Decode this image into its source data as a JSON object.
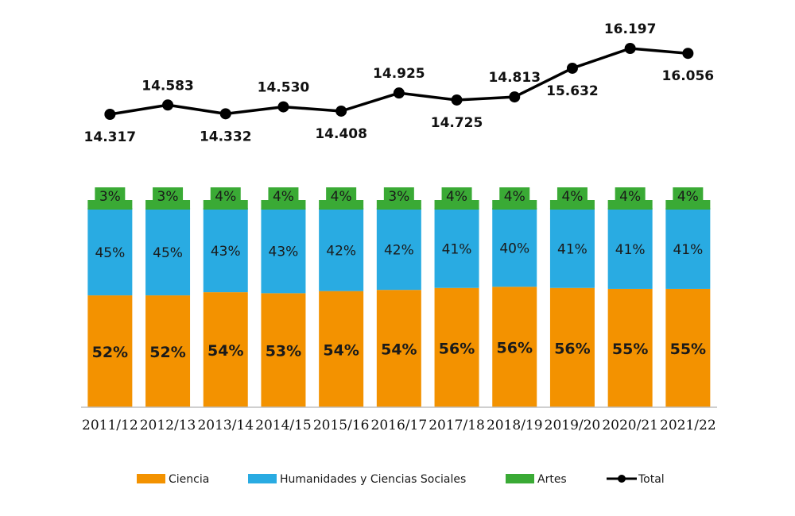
{
  "chart_data": {
    "type": "bar",
    "stacked": true,
    "categories": [
      "2011/12",
      "2012/13",
      "2013/14",
      "2014/15",
      "2015/16",
      "2016/17",
      "2017/18",
      "2018/19",
      "2019/20",
      "2020/21",
      "2021/22"
    ],
    "series": [
      {
        "name": "Ciencia",
        "color": "#F39200",
        "values": [
          52,
          52,
          54,
          53,
          54,
          54,
          56,
          56,
          56,
          55,
          55
        ],
        "labels": [
          "52%",
          "52%",
          "54%",
          "53%",
          "54%",
          "54%",
          "56%",
          "56%",
          "56%",
          "55%",
          "55%"
        ]
      },
      {
        "name": "Humanidades y Ciencias Sociales",
        "color": "#29ABE2",
        "values": [
          45,
          45,
          43,
          43,
          42,
          42,
          41,
          40,
          41,
          41,
          41
        ],
        "labels": [
          "45%",
          "45%",
          "43%",
          "43%",
          "42%",
          "42%",
          "41%",
          "40%",
          "41%",
          "41%",
          "41%"
        ]
      },
      {
        "name": "Artes",
        "color": "#3AAA35",
        "values": [
          3,
          3,
          4,
          4,
          4,
          3,
          4,
          4,
          4,
          4,
          4
        ],
        "labels": [
          "3%",
          "3%",
          "4%",
          "4%",
          "4%",
          "3%",
          "4%",
          "4%",
          "4%",
          "4%",
          "4%"
        ]
      }
    ],
    "line": {
      "name": "Total",
      "color": "#000000",
      "values": [
        14317,
        14583,
        14332,
        14530,
        14408,
        14925,
        14725,
        14813,
        15632,
        16197,
        16056
      ],
      "labels": [
        "14.317",
        "14.583",
        "14.332",
        "14.530",
        "14.408",
        "14.925",
        "14.725",
        "14.813",
        "15.632",
        "16.197",
        "16.056"
      ]
    },
    "legend_position": "bottom",
    "grid": false,
    "title": "",
    "xlabel": "",
    "ylabel": ""
  }
}
